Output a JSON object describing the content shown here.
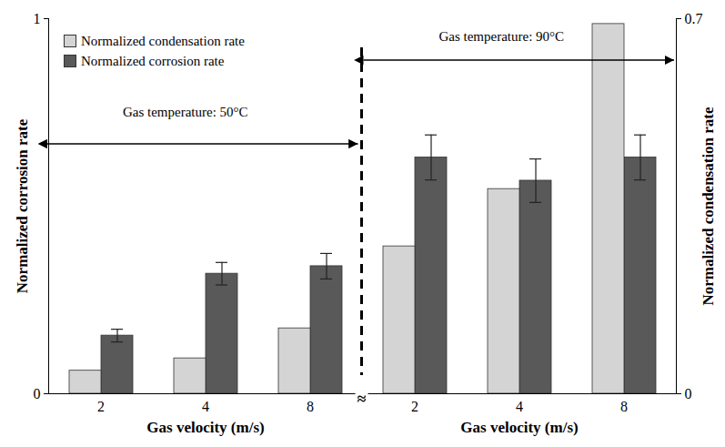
{
  "chart_data": {
    "type": "bar",
    "x_label": "Gas velocity (m/s)",
    "y_label": "Normalized corrosion rate",
    "y2_label": "Normalized condensation rate",
    "groups": [
      {
        "label": "Gas temperature: 50°C",
        "categories": [
          "2",
          "4",
          "8"
        ]
      },
      {
        "label": "Gas temperature: 90°C",
        "categories": [
          "2",
          "4",
          "8"
        ]
      }
    ],
    "axis_break": "≈",
    "ylim": [
      0,
      1
    ],
    "yticks": [
      0,
      1
    ],
    "y2lim": [
      0,
      0.7
    ],
    "y2ticks": [
      0,
      0.7
    ],
    "legend": "top-left",
    "series": [
      {
        "name": "Normalized condensation rate",
        "color": "#d4d4d4",
        "axis": "y2",
        "values": [
          0.043,
          0.066,
          0.122,
          0.275,
          0.382,
          0.69
        ]
      },
      {
        "name": "Normalized corrosion rate",
        "color": "#595959",
        "values": [
          0.155,
          0.32,
          0.34,
          0.63,
          0.568,
          0.63
        ],
        "errors": [
          0.017,
          0.03,
          0.034,
          0.06,
          0.058,
          0.06
        ]
      }
    ]
  }
}
